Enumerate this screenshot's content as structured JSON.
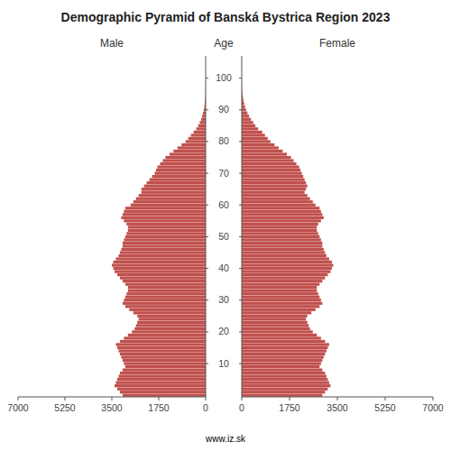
{
  "chart_data": {
    "type": "pyramid",
    "orientation": "horizontal",
    "title": "Demographic Pyramid of Banská Bystrica Region 2023",
    "ylabel": "Age",
    "annotations": [
      "www.iz.sk"
    ],
    "categories": [
      0,
      1,
      2,
      3,
      4,
      5,
      6,
      7,
      8,
      9,
      10,
      11,
      12,
      13,
      14,
      15,
      16,
      17,
      18,
      19,
      20,
      21,
      22,
      23,
      24,
      25,
      26,
      27,
      28,
      29,
      30,
      31,
      32,
      33,
      34,
      35,
      36,
      37,
      38,
      39,
      40,
      41,
      42,
      43,
      44,
      45,
      46,
      47,
      48,
      49,
      50,
      51,
      52,
      53,
      54,
      55,
      56,
      57,
      58,
      59,
      60,
      61,
      62,
      63,
      64,
      65,
      66,
      67,
      68,
      69,
      70,
      71,
      72,
      73,
      74,
      75,
      76,
      77,
      78,
      79,
      80,
      81,
      82,
      83,
      84,
      85,
      86,
      87,
      88,
      89,
      90,
      91,
      92,
      93,
      94,
      95,
      96,
      97,
      98,
      99,
      100,
      101,
      102,
      103,
      104,
      105
    ],
    "series": [
      {
        "name": "Male",
        "color": "#c0504d",
        "values": [
          3100,
          3200,
          3300,
          3400,
          3350,
          3300,
          3250,
          3200,
          3100,
          3000,
          3050,
          3100,
          3150,
          3200,
          3250,
          3300,
          3350,
          3200,
          3050,
          2900,
          2750,
          2650,
          2600,
          2550,
          2500,
          2550,
          2700,
          2850,
          3000,
          3100,
          3050,
          3000,
          2950,
          2900,
          2900,
          3000,
          3100,
          3200,
          3300,
          3400,
          3450,
          3500,
          3450,
          3350,
          3250,
          3200,
          3150,
          3100,
          3100,
          3050,
          3000,
          2950,
          2900,
          2900,
          2950,
          3050,
          3150,
          3100,
          3050,
          3000,
          2800,
          2700,
          2600,
          2500,
          2400,
          2400,
          2300,
          2200,
          2100,
          2000,
          1900,
          1850,
          1800,
          1700,
          1600,
          1500,
          1350,
          1200,
          1050,
          900,
          750,
          650,
          550,
          450,
          350,
          280,
          220,
          170,
          130,
          100,
          70,
          50,
          35,
          25,
          15,
          10,
          6,
          4,
          2,
          1,
          1,
          0,
          0,
          0,
          0,
          0
        ]
      },
      {
        "name": "Female",
        "color": "#c0504d",
        "values": [
          2950,
          3050,
          3150,
          3250,
          3200,
          3150,
          3100,
          3050,
          2950,
          2850,
          2900,
          2950,
          3000,
          3050,
          3100,
          3150,
          3200,
          3050,
          2900,
          2750,
          2600,
          2500,
          2450,
          2400,
          2350,
          2400,
          2550,
          2700,
          2850,
          2950,
          2900,
          2850,
          2800,
          2750,
          2750,
          2850,
          2950,
          3050,
          3150,
          3250,
          3300,
          3350,
          3300,
          3200,
          3100,
          3050,
          3000,
          2950,
          2950,
          2900,
          2850,
          2800,
          2750,
          2750,
          2800,
          2900,
          3000,
          2950,
          2900,
          2850,
          2700,
          2600,
          2500,
          2400,
          2300,
          2350,
          2400,
          2350,
          2300,
          2250,
          2200,
          2150,
          2100,
          2000,
          1900,
          1800,
          1650,
          1500,
          1350,
          1200,
          1050,
          950,
          850,
          750,
          600,
          500,
          420,
          340,
          270,
          210,
          160,
          120,
          90,
          65,
          45,
          30,
          18,
          12,
          6,
          3,
          2,
          1,
          0,
          0,
          0,
          0
        ]
      }
    ],
    "xlim": [
      0,
      7000
    ],
    "xticks": [
      0,
      1750,
      3500,
      5250,
      7000
    ],
    "ylim": [
      -0.5,
      107
    ],
    "yticks": [
      10,
      20,
      30,
      40,
      50,
      60,
      70,
      80,
      90,
      100
    ],
    "grid": false
  }
}
